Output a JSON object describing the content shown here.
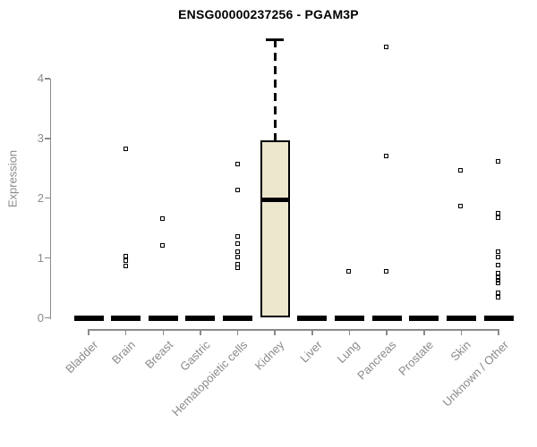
{
  "chart_data": {
    "type": "boxplot",
    "title": "ENSG00000237256 - PGAM3P",
    "xlabel": "",
    "ylabel": "Expression",
    "yticks": [
      0,
      1,
      2,
      3,
      4
    ],
    "ylim": [
      0,
      4.75
    ],
    "grid": false,
    "legend": "none",
    "categories": [
      "Bladder",
      "Brain",
      "Breast",
      "Gastric",
      "Hematopoietic cells",
      "Kidney",
      "Liver",
      "Lung",
      "Pancreas",
      "Prostate",
      "Skin",
      "Unknown / Other"
    ],
    "boxes": [
      {
        "category": "Bladder",
        "q1": 0,
        "median": 0,
        "q3": 0,
        "whisker_low": 0,
        "whisker_high": 0,
        "outliers": []
      },
      {
        "category": "Brain",
        "q1": 0,
        "median": 0,
        "q3": 0,
        "whisker_low": 0,
        "whisker_high": 0,
        "outliers": [
          2.82,
          1.03,
          0.95,
          0.87
        ]
      },
      {
        "category": "Breast",
        "q1": 0,
        "median": 0,
        "q3": 0,
        "whisker_low": 0,
        "whisker_high": 0,
        "outliers": [
          1.66,
          1.21
        ]
      },
      {
        "category": "Gastric",
        "q1": 0,
        "median": 0,
        "q3": 0,
        "whisker_low": 0,
        "whisker_high": 0,
        "outliers": []
      },
      {
        "category": "Hematopoietic cells",
        "q1": 0,
        "median": 0,
        "q3": 0,
        "whisker_low": 0,
        "whisker_high": 0,
        "outliers": [
          2.57,
          2.14,
          1.36,
          1.24,
          1.11,
          1.02,
          0.9,
          0.84
        ]
      },
      {
        "category": "Kidney",
        "q1": 0,
        "median": 1.98,
        "q3": 2.97,
        "whisker_low": 0,
        "whisker_high": 4.65,
        "outliers": []
      },
      {
        "category": "Liver",
        "q1": 0,
        "median": 0,
        "q3": 0,
        "whisker_low": 0,
        "whisker_high": 0,
        "outliers": []
      },
      {
        "category": "Lung",
        "q1": 0,
        "median": 0,
        "q3": 0,
        "whisker_low": 0,
        "whisker_high": 0,
        "outliers": [
          0.78
        ]
      },
      {
        "category": "Pancreas",
        "q1": 0,
        "median": 0,
        "q3": 0,
        "whisker_low": 0,
        "whisker_high": 0,
        "outliers": [
          4.53,
          2.71,
          0.78
        ]
      },
      {
        "category": "Prostate",
        "q1": 0,
        "median": 0,
        "q3": 0,
        "whisker_low": 0,
        "whisker_high": 0,
        "outliers": []
      },
      {
        "category": "Skin",
        "q1": 0,
        "median": 0,
        "q3": 0,
        "whisker_low": 0,
        "whisker_high": 0,
        "outliers": [
          2.47,
          1.87
        ]
      },
      {
        "category": "Unknown / Other",
        "q1": 0,
        "median": 0,
        "q3": 0,
        "whisker_low": 0,
        "whisker_high": 0,
        "outliers": [
          2.61,
          1.75,
          1.67,
          1.1,
          1.02,
          0.88,
          0.74,
          0.68,
          0.63,
          0.58,
          0.42,
          0.35
        ]
      }
    ],
    "colors": {
      "box_fill": "#ece7cd",
      "box_border": "#000000",
      "median": "#000000",
      "flat_box": "#000000",
      "outlier": "#000000",
      "axis": "#8a8a8a",
      "title": "#000000",
      "background": "#ffffff"
    }
  }
}
